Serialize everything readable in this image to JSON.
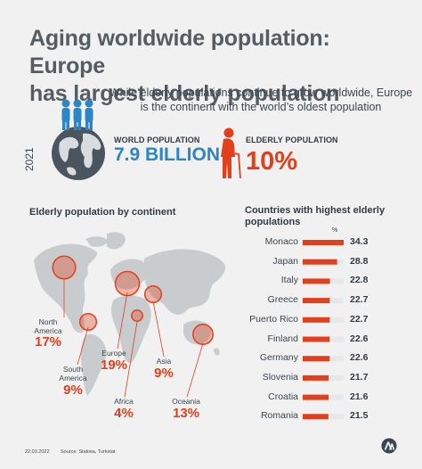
{
  "title_line1": "Aging worldwide population: Europe",
  "title_line2": "has largest elderly population",
  "subtitle": "While elderly populations continue to grow worldwide, Europe is the continent with the world’s oldest population",
  "year": "2021",
  "world_population": {
    "label": "WORLD POPULATION",
    "value": "7.9 BILLION"
  },
  "elderly_population": {
    "label": "ELDERLY POPULATION",
    "value": "10%"
  },
  "colors": {
    "accent": "#e2401c",
    "blue": "#2d86c4",
    "map": "#c9ccce",
    "text": "#2f3b44"
  },
  "icons": [
    "people-group-icon",
    "globe-icon",
    "elderly-person-icon",
    "world-map-icon",
    "anadolu-logo"
  ],
  "chart_data": [
    {
      "type": "bubble-map",
      "title": "Elderly population by continent",
      "categories": [
        "North America",
        "South America",
        "Europe",
        "Africa",
        "Asia",
        "Oceania"
      ],
      "labels": [
        "North\nAmerica",
        "South\nAmerica",
        "Europe",
        "Africa",
        "Asia",
        "Oceania"
      ],
      "value_labels": [
        "17%",
        "9%",
        "19%",
        "4%",
        "9%",
        "13%"
      ],
      "values": [
        17,
        9,
        19,
        4,
        9,
        13
      ]
    },
    {
      "type": "bar",
      "orientation": "horizontal",
      "title": "Countries with highest elderly populations",
      "unit_label": "%",
      "categories": [
        "Monaco",
        "Japan",
        "Italy",
        "Greece",
        "Puerto Rico",
        "Finland",
        "Germany",
        "Slovenia",
        "Croatia",
        "Romania"
      ],
      "values": [
        34.3,
        28.8,
        22.8,
        22.7,
        22.7,
        22.6,
        22.6,
        21.7,
        21.6,
        21.5
      ],
      "value_labels": [
        "34.3",
        "28.8",
        "22.8",
        "22.7",
        "22.7",
        "22.6",
        "22.6",
        "21.7",
        "21.6",
        "21.5"
      ],
      "xlim": [
        0,
        34.3
      ]
    }
  ],
  "footer": {
    "date": "22.03.2022",
    "source": "Source: Statista, Turkstat"
  }
}
